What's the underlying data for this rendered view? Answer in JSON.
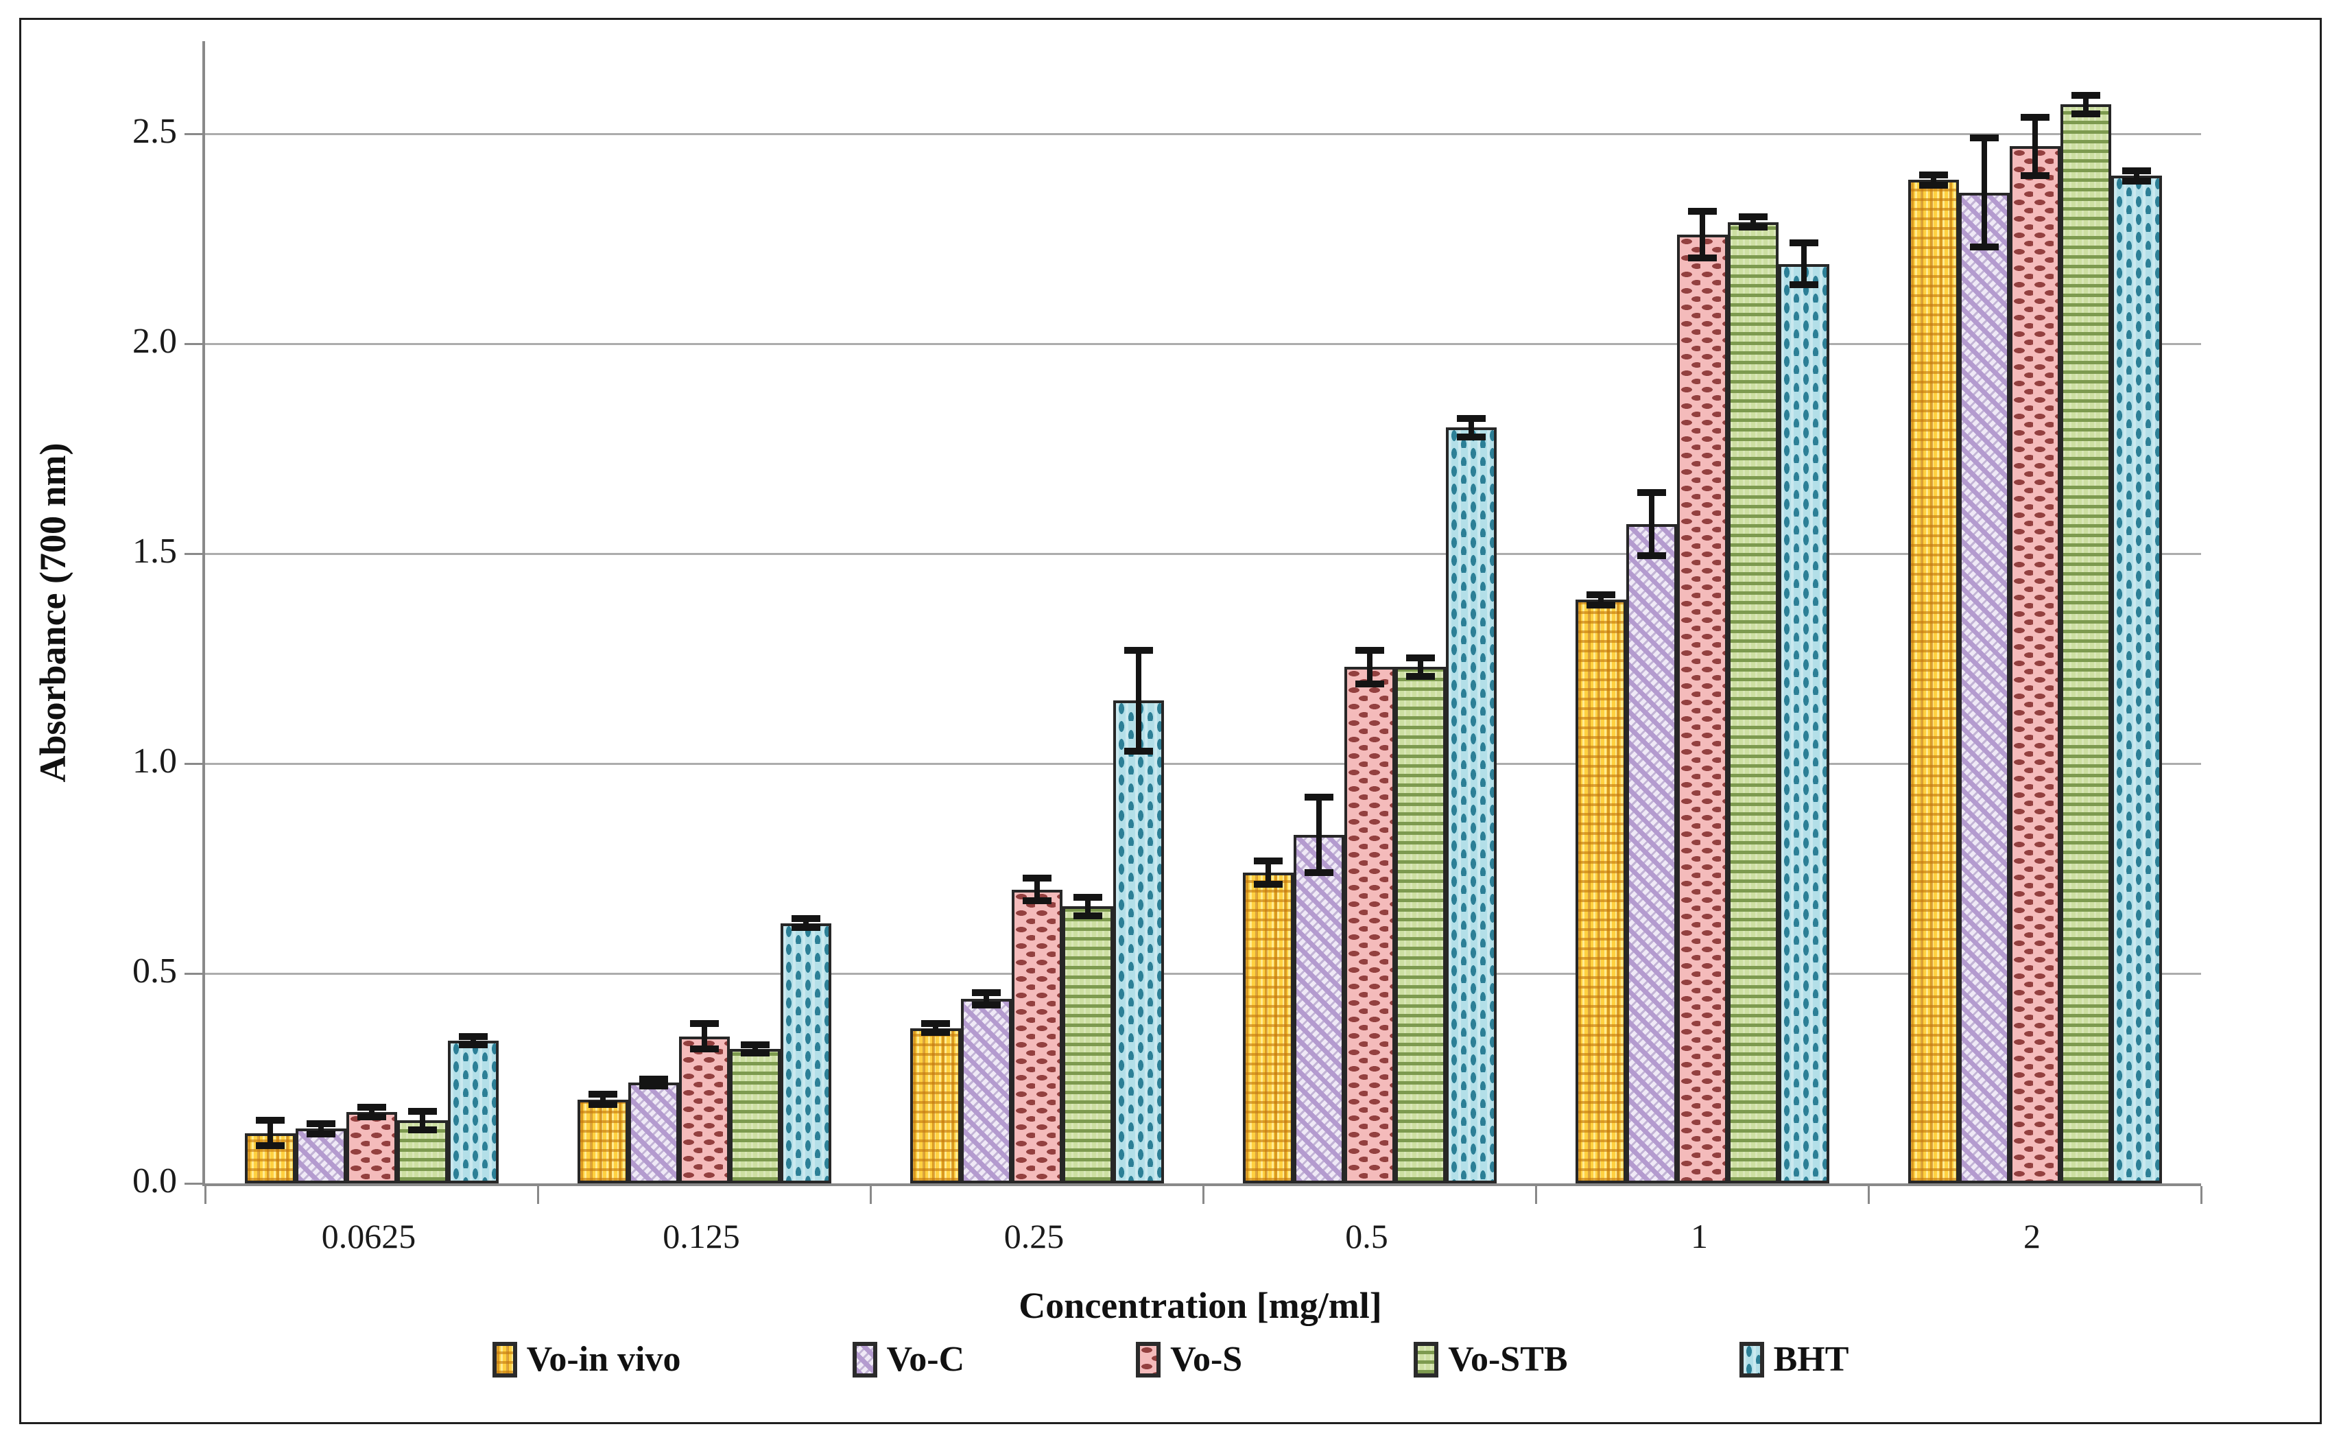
{
  "figure": {
    "y_axis_title": "Absorbance (700 nm)",
    "x_axis_title": "Concentration [mg/ml]"
  },
  "chart_data": {
    "type": "bar",
    "title": "",
    "xlabel": "Concentration [mg/ml]",
    "ylabel": "Absorbance (700 nm)",
    "ylim": [
      0,
      2.72
    ],
    "y_ticks": [
      0.0,
      0.5,
      1.0,
      1.5,
      2.0,
      2.5
    ],
    "y_tick_labels": [
      "0.0",
      "0.5",
      "1.0",
      "1.5",
      "2.0",
      "2.5"
    ],
    "grid": "horizontal-only",
    "legend_position": "bottom",
    "error_bars": true,
    "categories": [
      "0.0625",
      "0.125",
      "0.25",
      "0.5",
      "1",
      "2"
    ],
    "series": [
      {
        "name": "Vo-in vivo",
        "pattern": "gold",
        "color": "#FFD040",
        "accent": "#C4780C",
        "values": [
          0.12,
          0.2,
          0.37,
          0.74,
          1.39,
          2.39
        ],
        "errors": [
          0.03,
          0.012,
          0.01,
          0.028,
          0.012,
          0.012
        ]
      },
      {
        "name": "Vo-C",
        "pattern": "purple",
        "color": "#CBB8DE",
        "accent": "#8B6FAE",
        "values": [
          0.13,
          0.24,
          0.44,
          0.83,
          1.57,
          2.36
        ],
        "errors": [
          0.012,
          0.008,
          0.015,
          0.09,
          0.075,
          0.13
        ]
      },
      {
        "name": "Vo-S",
        "pattern": "pink",
        "color": "#F4BBBB",
        "accent": "#93403F",
        "values": [
          0.17,
          0.35,
          0.7,
          1.23,
          2.26,
          2.47
        ],
        "errors": [
          0.012,
          0.03,
          0.027,
          0.04,
          0.055,
          0.07
        ]
      },
      {
        "name": "Vo-STB",
        "pattern": "green",
        "color": "#CDDFA2",
        "accent": "#7D9A4F",
        "values": [
          0.15,
          0.32,
          0.66,
          1.23,
          2.29,
          2.57
        ],
        "errors": [
          0.022,
          0.01,
          0.022,
          0.022,
          0.012,
          0.022
        ]
      },
      {
        "name": "BHT",
        "pattern": "cyan",
        "color": "#B3DFE8",
        "accent": "#2C7F96",
        "values": [
          0.34,
          0.62,
          1.15,
          1.8,
          2.19,
          2.4
        ],
        "errors": [
          0.01,
          0.01,
          0.12,
          0.022,
          0.05,
          0.012
        ]
      }
    ]
  }
}
